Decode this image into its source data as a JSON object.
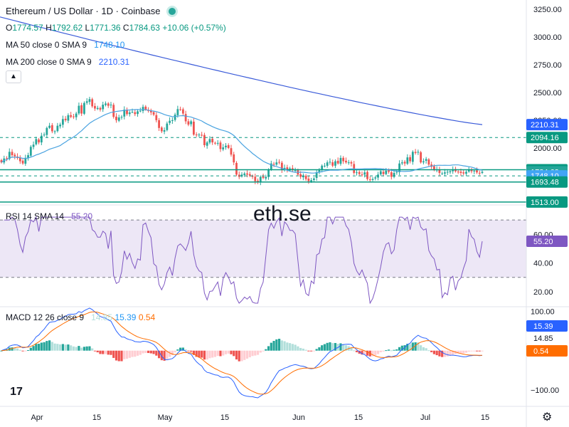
{
  "header": {
    "symbol_title": "Ethereum / US Dollar · 1D · Coinbase",
    "ohlc": {
      "o_label": "O",
      "o": "1774.57",
      "h_label": "H",
      "h": "1792.62",
      "l_label": "L",
      "l": "1771.36",
      "c_label": "C",
      "c": "1784.63",
      "change": "+10.06 (+0.57%)"
    },
    "ma50": {
      "label": "MA 50 close 0 SMA 9",
      "value": "1748.10"
    },
    "ma200": {
      "label": "MA 200 close 0 SMA 9",
      "value": "2210.31"
    },
    "collapse_icon": "chevron-up-icon"
  },
  "watermark": "eth.se",
  "rsi_legend": {
    "label": "RSI 14 SMA 14",
    "value": "55.20"
  },
  "macd_legend": {
    "label": "MACD 12 26 close 9",
    "v1": "14.85",
    "v2": "15.39",
    "v3": "0.54"
  },
  "colors": {
    "up": "#26a69a",
    "down": "#ef5350",
    "ma50": "#4aa3e0",
    "ma200": "#3a5bd9",
    "rsi": "#7e57c2",
    "rsi_band": "#ede7f6",
    "macd_line": "#2962ff",
    "signal_line": "#ff6d00",
    "level_green": "#089981",
    "pos_strong": "#26a69a",
    "pos_weak": "#b2dfdb",
    "neg_strong": "#ef5350",
    "neg_weak": "#ffcdd2"
  },
  "price_axis": {
    "ticks": [
      "3250.00",
      "3000.00",
      "2750.00",
      "2500.00",
      "2250.00",
      "2000.00"
    ],
    "labels": [
      {
        "text": "2210.31",
        "value": 2210.31,
        "color": "#2962ff"
      },
      {
        "text": "2094.16",
        "value": 2094.16,
        "color": "#089981"
      },
      {
        "text": "1803.58",
        "value": 1803.58,
        "color": "#089981"
      },
      {
        "text": "1784.63",
        "value": 1784.63,
        "color": "#26a69a"
      },
      {
        "text": "1748.10",
        "value": 1748.1,
        "color": "#42a5f5"
      },
      {
        "text": "1693.48",
        "value": 1693.48,
        "color": "#089981"
      },
      {
        "text": "1513.00",
        "value": 1513.0,
        "color": "#089981"
      }
    ]
  },
  "rsi_axis": {
    "ticks": [
      "60.00",
      "40.00",
      "20.00"
    ],
    "label": "55.20"
  },
  "macd_axis": {
    "ticks": [
      "100.00",
      "−100.00"
    ],
    "labels": [
      "15.39",
      "14.85",
      "0.54"
    ]
  },
  "time_axis": {
    "labels": [
      "Apr",
      "15",
      "May",
      "15",
      "Jun",
      "15",
      "Jul",
      "15"
    ]
  },
  "chart_data": {
    "type": "candlestick",
    "title": "Ethereum / US Dollar · 1D · Coinbase",
    "price_range": [
      1480,
      3320
    ],
    "levels": {
      "solid": [
        1803.58,
        1693.48,
        1513.0
      ],
      "dashed": [
        2094.16,
        1748.1
      ]
    },
    "candles_close": [
      1870,
      1905,
      1905,
      1965,
      1935,
      1925,
      1910,
      1880,
      1860,
      1910,
      1935,
      2010,
      2030,
      2080,
      2050,
      2110,
      2120,
      2180,
      2200,
      2150,
      2150,
      2200,
      2210,
      2260,
      2250,
      2295,
      2280,
      2280,
      2310,
      2380,
      2310,
      2405,
      2420,
      2440,
      2375,
      2355,
      2360,
      2345,
      2390,
      2400,
      2380,
      2390,
      2280,
      2250,
      2275,
      2280,
      2345,
      2305,
      2320,
      2325,
      2305,
      2330,
      2335,
      2370,
      2345,
      2335,
      2320,
      2300,
      2250,
      2180,
      2150,
      2160,
      2220,
      2245,
      2250,
      2300,
      2350,
      2345,
      2310,
      2240,
      2210,
      2240,
      2120,
      2115,
      2120,
      2115,
      2025,
      2050,
      2080,
      2050,
      2040,
      2045,
      1990,
      2005,
      2020,
      2000,
      1940,
      1870,
      1760,
      1740,
      1760,
      1770,
      1760,
      1750,
      1740,
      1700,
      1690,
      1740,
      1730,
      1740,
      1805,
      1860,
      1850,
      1870,
      1870,
      1800,
      1820,
      1800,
      1815,
      1805,
      1800,
      1760,
      1740,
      1750,
      1720,
      1700,
      1710,
      1725,
      1780,
      1800,
      1840,
      1840,
      1870,
      1875,
      1840,
      1880,
      1860,
      1910,
      1880,
      1870,
      1870,
      1860,
      1775,
      1780,
      1765,
      1760,
      1780,
      1720,
      1710,
      1720,
      1735,
      1760,
      1790,
      1765,
      1795,
      1785,
      1740,
      1775,
      1785,
      1860,
      1870,
      1860,
      1915,
      1880,
      1965,
      1955,
      1965,
      1870,
      1880,
      1900,
      1850,
      1830,
      1800,
      1805,
      1775,
      1770,
      1780,
      1785,
      1790,
      1805,
      1790,
      1785,
      1775,
      1770,
      1785,
      1805,
      1790,
      1795,
      1780,
      1775,
      1785
    ],
    "ma200": {
      "name": "MA 200",
      "start": 3180,
      "end": 2210.31
    },
    "ma50": {
      "name": "MA 50",
      "last": 1748.1
    },
    "rsi": {
      "name": "RSI 14",
      "last": 55.2,
      "upper": 70,
      "lower": 30,
      "range": [
        10,
        80
      ]
    },
    "macd": {
      "macd_last": 15.39,
      "signal_last": 14.85,
      "hist_last": 0.54,
      "range": [
        -140,
        110
      ]
    },
    "x_labels": [
      "Apr",
      "15",
      "May",
      "15",
      "Jun",
      "15",
      "Jul",
      "15"
    ]
  }
}
